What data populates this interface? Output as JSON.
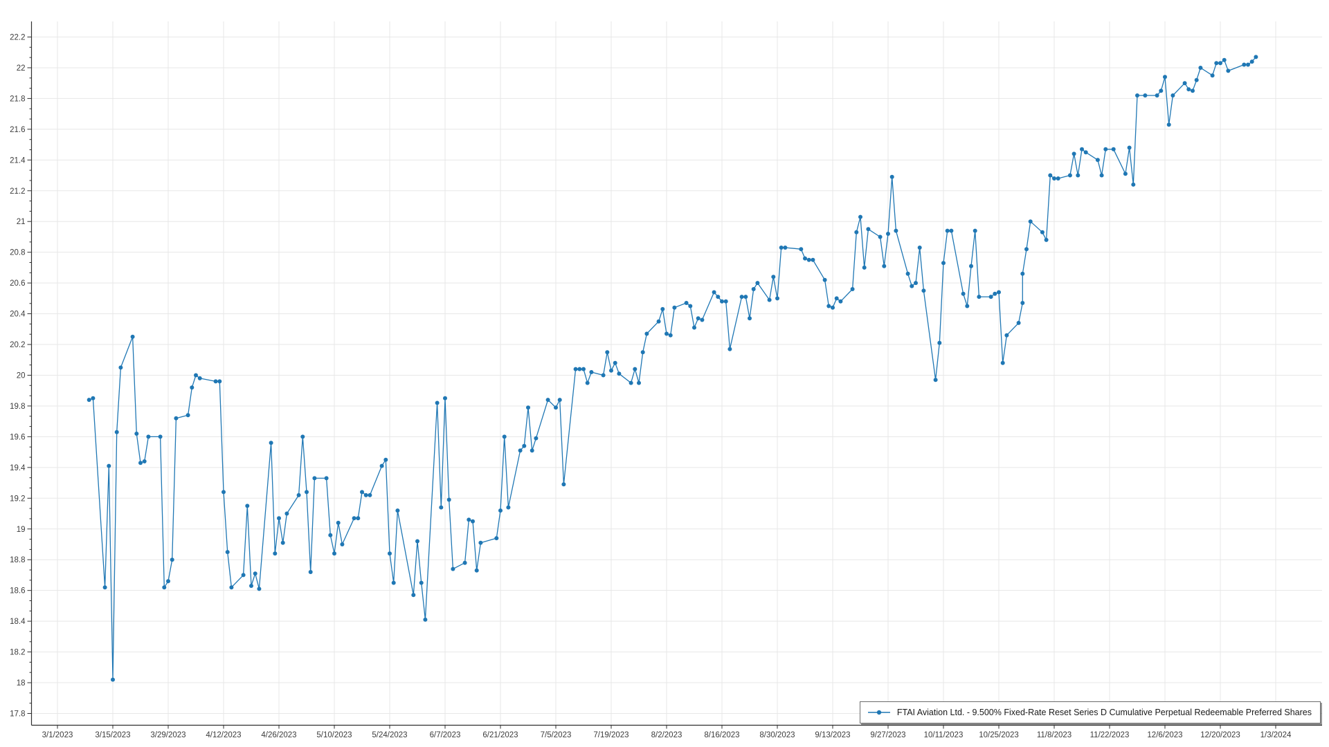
{
  "chart_data": {
    "type": "line",
    "title": "",
    "grid": true,
    "legend_position": "bottom-right",
    "year": 2023,
    "x_axis": {
      "start_date": "3/1/2023",
      "end_date": "1/3/2024",
      "tick_interval_days": 14
    },
    "x_tick_labels": [
      "3/1/2023",
      "3/15/2023",
      "3/29/2023",
      "4/12/2023",
      "4/26/2023",
      "5/10/2023",
      "5/24/2023",
      "6/7/2023",
      "6/21/2023",
      "7/5/2023",
      "7/19/2023",
      "8/2/2023",
      "8/16/2023",
      "8/30/2023",
      "9/13/2023",
      "9/27/2023",
      "10/11/2023",
      "10/25/2023",
      "11/8/2023",
      "11/22/2023",
      "12/6/2023",
      "12/20/2023",
      "1/3/2024"
    ],
    "y_axis": {
      "min": 17.8,
      "max": 22.2,
      "step": 0.2
    },
    "series": [
      {
        "name": "FTAI Aviation Ltd. - 9.500% Fixed-Rate Reset Series D Cumulative Perpetual Redeemable Preferred Shares",
        "color": "#1f77b4",
        "points": [
          [
            "3/9",
            19.84
          ],
          [
            "3/10",
            19.85
          ],
          [
            "3/13",
            18.62
          ],
          [
            "3/14",
            19.41
          ],
          [
            "3/15",
            18.02
          ],
          [
            "3/16",
            19.63
          ],
          [
            "3/17",
            20.05
          ],
          [
            "3/20",
            20.25
          ],
          [
            "3/21",
            19.62
          ],
          [
            "3/22",
            19.43
          ],
          [
            "3/23",
            19.44
          ],
          [
            "3/24",
            19.6
          ],
          [
            "3/27",
            19.6
          ],
          [
            "3/28",
            18.62
          ],
          [
            "3/29",
            18.66
          ],
          [
            "3/30",
            18.8
          ],
          [
            "3/31",
            19.72
          ],
          [
            "4/3",
            19.74
          ],
          [
            "4/4",
            19.92
          ],
          [
            "4/5",
            20.0
          ],
          [
            "4/6",
            19.98
          ],
          [
            "4/10",
            19.96
          ],
          [
            "4/11",
            19.96
          ],
          [
            "4/12",
            19.24
          ],
          [
            "4/13",
            18.85
          ],
          [
            "4/14",
            18.62
          ],
          [
            "4/17",
            18.7
          ],
          [
            "4/18",
            19.15
          ],
          [
            "4/19",
            18.63
          ],
          [
            "4/20",
            18.71
          ],
          [
            "4/21",
            18.61
          ],
          [
            "4/24",
            19.56
          ],
          [
            "4/25",
            18.84
          ],
          [
            "4/26",
            19.07
          ],
          [
            "4/27",
            18.91
          ],
          [
            "4/28",
            19.1
          ],
          [
            "5/1",
            19.22
          ],
          [
            "5/2",
            19.6
          ],
          [
            "5/3",
            19.24
          ],
          [
            "5/4",
            18.72
          ],
          [
            "5/5",
            19.33
          ],
          [
            "5/8",
            19.33
          ],
          [
            "5/9",
            18.96
          ],
          [
            "5/10",
            18.84
          ],
          [
            "5/11",
            19.04
          ],
          [
            "5/12",
            18.9
          ],
          [
            "5/15",
            19.07
          ],
          [
            "5/16",
            19.07
          ],
          [
            "5/17",
            19.24
          ],
          [
            "5/18",
            19.22
          ],
          [
            "5/19",
            19.22
          ],
          [
            "5/22",
            19.41
          ],
          [
            "5/23",
            19.45
          ],
          [
            "5/24",
            18.84
          ],
          [
            "5/25",
            18.65
          ],
          [
            "5/26",
            19.12
          ],
          [
            "5/30",
            18.57
          ],
          [
            "5/31",
            18.92
          ],
          [
            "6/1",
            18.65
          ],
          [
            "6/2",
            18.41
          ],
          [
            "6/5",
            19.82
          ],
          [
            "6/6",
            19.14
          ],
          [
            "6/7",
            19.85
          ],
          [
            "6/8",
            19.19
          ],
          [
            "6/9",
            18.74
          ],
          [
            "6/12",
            18.78
          ],
          [
            "6/13",
            19.06
          ],
          [
            "6/14",
            19.05
          ],
          [
            "6/15",
            18.73
          ],
          [
            "6/16",
            18.91
          ],
          [
            "6/20",
            18.94
          ],
          [
            "6/21",
            19.12
          ],
          [
            "6/22",
            19.6
          ],
          [
            "6/23",
            19.14
          ],
          [
            "6/26",
            19.51
          ],
          [
            "6/27",
            19.54
          ],
          [
            "6/28",
            19.79
          ],
          [
            "6/29",
            19.51
          ],
          [
            "6/30",
            19.59
          ],
          [
            "7/3",
            19.84
          ],
          [
            "7/5",
            19.79
          ],
          [
            "7/6",
            19.84
          ],
          [
            "7/7",
            19.29
          ],
          [
            "7/10",
            20.04
          ],
          [
            "7/11",
            20.04
          ],
          [
            "7/12",
            20.04
          ],
          [
            "7/13",
            19.95
          ],
          [
            "7/14",
            20.02
          ],
          [
            "7/17",
            20.0
          ],
          [
            "7/18",
            20.15
          ],
          [
            "7/19",
            20.03
          ],
          [
            "7/20",
            20.08
          ],
          [
            "7/21",
            20.01
          ],
          [
            "7/24",
            19.95
          ],
          [
            "7/25",
            20.04
          ],
          [
            "7/26",
            19.95
          ],
          [
            "7/27",
            20.15
          ],
          [
            "7/28",
            20.27
          ],
          [
            "7/31",
            20.35
          ],
          [
            "8/1",
            20.43
          ],
          [
            "8/2",
            20.27
          ],
          [
            "8/3",
            20.26
          ],
          [
            "8/4",
            20.44
          ],
          [
            "8/7",
            20.47
          ],
          [
            "8/8",
            20.45
          ],
          [
            "8/9",
            20.31
          ],
          [
            "8/10",
            20.37
          ],
          [
            "8/11",
            20.36
          ],
          [
            "8/14",
            20.54
          ],
          [
            "8/15",
            20.51
          ],
          [
            "8/16",
            20.48
          ],
          [
            "8/17",
            20.48
          ],
          [
            "8/18",
            20.17
          ],
          [
            "8/21",
            20.51
          ],
          [
            "8/22",
            20.51
          ],
          [
            "8/23",
            20.37
          ],
          [
            "8/24",
            20.56
          ],
          [
            "8/25",
            20.6
          ],
          [
            "8/28",
            20.49
          ],
          [
            "8/29",
            20.64
          ],
          [
            "8/30",
            20.5
          ],
          [
            "8/31",
            20.83
          ],
          [
            "9/1",
            20.83
          ],
          [
            "9/5",
            20.82
          ],
          [
            "9/6",
            20.76
          ],
          [
            "9/7",
            20.75
          ],
          [
            "9/8",
            20.75
          ],
          [
            "9/11",
            20.62
          ],
          [
            "9/12",
            20.45
          ],
          [
            "9/13",
            20.44
          ],
          [
            "9/14",
            20.5
          ],
          [
            "9/15",
            20.48
          ],
          [
            "9/18",
            20.56
          ],
          [
            "9/19",
            20.93
          ],
          [
            "9/20",
            21.03
          ],
          [
            "9/21",
            20.7
          ],
          [
            "9/22",
            20.95
          ],
          [
            "9/25",
            20.9
          ],
          [
            "9/26",
            20.71
          ],
          [
            "9/27",
            20.92
          ],
          [
            "9/28",
            21.29
          ],
          [
            "9/29",
            20.94
          ],
          [
            "10/2",
            20.66
          ],
          [
            "10/3",
            20.58
          ],
          [
            "10/4",
            20.6
          ],
          [
            "10/5",
            20.83
          ],
          [
            "10/6",
            20.55
          ],
          [
            "10/9",
            19.97
          ],
          [
            "10/10",
            20.21
          ],
          [
            "10/11",
            20.73
          ],
          [
            "10/12",
            20.94
          ],
          [
            "10/13",
            20.94
          ],
          [
            "10/16",
            20.53
          ],
          [
            "10/17",
            20.45
          ],
          [
            "10/18",
            20.71
          ],
          [
            "10/19",
            20.94
          ],
          [
            "10/20",
            20.51
          ],
          [
            "10/23",
            20.51
          ],
          [
            "10/24",
            20.53
          ],
          [
            "10/25",
            20.54
          ],
          [
            "10/26",
            20.08
          ],
          [
            "10/27",
            20.26
          ],
          [
            "10/30",
            20.34
          ],
          [
            "10/31",
            20.47
          ],
          [
            "11/1",
            20.66
          ],
          [
            "11/2",
            20.82
          ],
          [
            "11/3",
            21.0
          ],
          [
            "11/6",
            20.93
          ],
          [
            "11/7",
            20.88
          ],
          [
            "11/8",
            21.3
          ],
          [
            "11/9",
            21.28
          ],
          [
            "11/10",
            21.28
          ],
          [
            "11/13",
            21.3
          ],
          [
            "11/14",
            21.44
          ],
          [
            "11/15",
            21.3
          ],
          [
            "11/16",
            21.47
          ],
          [
            "11/17",
            21.45
          ],
          [
            "11/20",
            21.4
          ],
          [
            "11/21",
            21.3
          ],
          [
            "11/22",
            21.47
          ],
          [
            "11/24",
            21.47
          ],
          [
            "11/27",
            21.31
          ],
          [
            "11/28",
            21.48
          ],
          [
            "11/29",
            21.24
          ],
          [
            "11/30",
            21.82
          ],
          [
            "12/1",
            21.82
          ],
          [
            "12/4",
            21.82
          ],
          [
            "12/5",
            21.85
          ],
          [
            "12/6",
            21.94
          ],
          [
            "12/7",
            21.63
          ],
          [
            "12/8",
            21.82
          ],
          [
            "12/11",
            21.9
          ],
          [
            "12/12",
            21.86
          ],
          [
            "12/13",
            21.85
          ],
          [
            "12/14",
            21.92
          ],
          [
            "12/15",
            22.0
          ],
          [
            "12/18",
            21.95
          ],
          [
            "12/19",
            22.03
          ],
          [
            "12/20",
            22.03
          ],
          [
            "12/21",
            22.05
          ],
          [
            "12/22",
            21.98
          ],
          [
            "12/26",
            22.02
          ],
          [
            "12/27",
            22.02
          ],
          [
            "12/28",
            22.04
          ],
          [
            "12/29",
            22.07
          ]
        ]
      }
    ]
  },
  "legend": {
    "label": "FTAI Aviation Ltd. - 9.500% Fixed-Rate Reset Series D Cumulative Perpetual Redeemable Preferred Shares"
  },
  "colors": {
    "line": "#1f77b4",
    "grid": "#e7e7e7",
    "axis": "#2f2f2f",
    "tick_label": "#3c3c3c",
    "legend_border": "#6b6b6b",
    "background": "#ffffff"
  }
}
